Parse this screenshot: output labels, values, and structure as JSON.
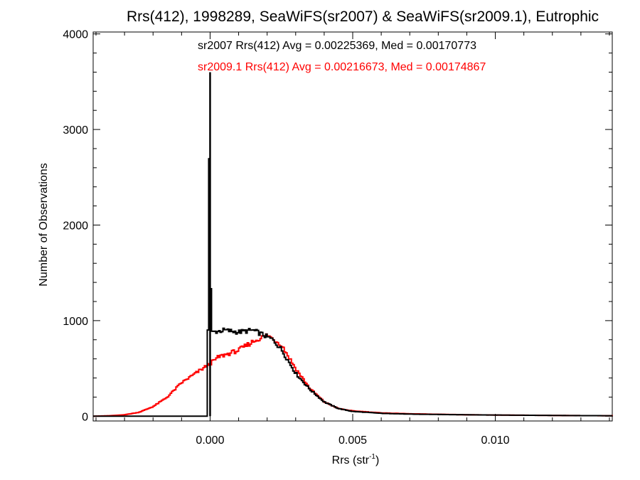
{
  "chart_data": {
    "type": "line",
    "style": "histogram-step",
    "title": "Rrs(412), 1998289, SeaWiFS(sr2007) & SeaWiFS(sr2009.1), Eutrophic",
    "xlabel_main": "Rrs (str",
    "xlabel_sup": "-1",
    "xlabel_close": ")",
    "ylabel": "Number of Observations",
    "xlim": [
      -0.0041,
      0.0141
    ],
    "ylim": [
      -50,
      4020
    ],
    "xticks": [
      0.0,
      0.005,
      0.01
    ],
    "xtick_labels": [
      "0.000",
      "0.005",
      "0.010"
    ],
    "yticks": [
      0,
      1000,
      2000,
      3000,
      4000
    ],
    "ytick_labels": [
      "0",
      "1000",
      "2000",
      "3000",
      "4000"
    ],
    "grid": false,
    "annotations": [
      {
        "text": "sr2007 Rrs(412) Avg = 0.00225369, Med = 0.00170773",
        "color": "#000000"
      },
      {
        "text": "sr2009.1 Rrs(412) Avg = 0.00216673, Med = 0.00174867",
        "color": "#ff0000"
      }
    ],
    "series": [
      {
        "color": "#000000",
        "x": [
          -0.0041,
          -0.0001,
          0.0,
          3e-05,
          0.0001,
          0.0005,
          0.001,
          0.0015,
          0.0018,
          0.002,
          0.0022,
          0.0025,
          0.003,
          0.0035,
          0.004,
          0.0045,
          0.005,
          0.006,
          0.007,
          0.008,
          0.009,
          0.01,
          0.011,
          0.012,
          0.013,
          0.0141
        ],
        "y": [
          0,
          0,
          3600,
          870,
          880,
          900,
          880,
          900,
          860,
          830,
          800,
          700,
          450,
          280,
          150,
          80,
          50,
          30,
          22,
          18,
          15,
          12,
          10,
          8,
          6,
          5
        ]
      },
      {
        "color": "#ff0000",
        "x": [
          -0.0041,
          -0.0035,
          -0.003,
          -0.0025,
          -0.002,
          -0.0015,
          -0.001,
          -0.0005,
          0.0,
          0.0003,
          0.0005,
          0.001,
          0.0015,
          0.002,
          0.0022,
          0.0025,
          0.003,
          0.0035,
          0.004,
          0.0045,
          0.005,
          0.006,
          0.007,
          0.008,
          0.009,
          0.01,
          0.011,
          0.012,
          0.013,
          0.0141
        ],
        "y": [
          0,
          5,
          15,
          40,
          100,
          200,
          350,
          450,
          550,
          620,
          640,
          690,
          780,
          850,
          810,
          750,
          500,
          290,
          150,
          80,
          55,
          35,
          25,
          20,
          15,
          12,
          10,
          8,
          6,
          5
        ]
      }
    ]
  }
}
